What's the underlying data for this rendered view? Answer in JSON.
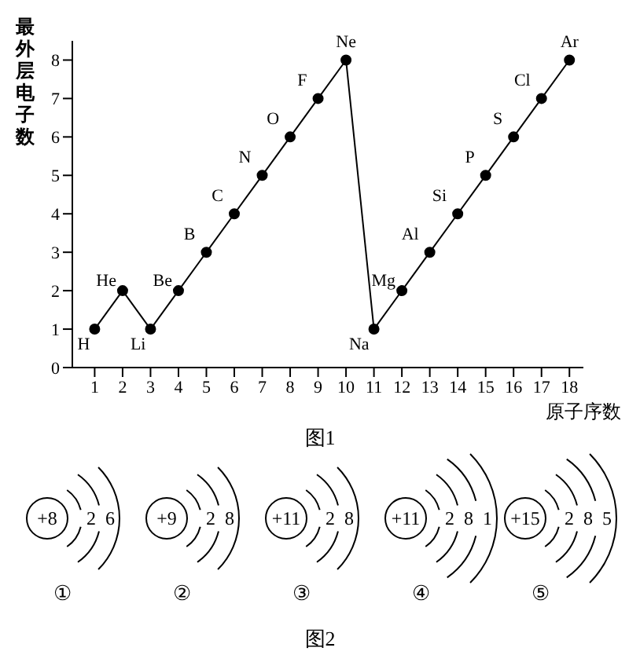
{
  "chart_data": {
    "type": "line",
    "xlabel": "原子序数",
    "ylabel": "最外层电子数",
    "x": [
      1,
      2,
      3,
      4,
      5,
      6,
      7,
      8,
      9,
      10,
      11,
      12,
      13,
      14,
      15,
      16,
      17,
      18
    ],
    "series": [
      {
        "color": "#000000",
        "values": [
          1,
          2,
          1,
          2,
          3,
          4,
          5,
          6,
          7,
          8,
          1,
          2,
          3,
          4,
          5,
          6,
          7,
          8
        ]
      }
    ],
    "xlim": [
      0.2,
      18.5
    ],
    "xticks": [
      1,
      2,
      3,
      4,
      5,
      6,
      7,
      8,
      9,
      10,
      11,
      12,
      13,
      14,
      15,
      16,
      17,
      18
    ],
    "ylim": [
      0,
      8.5
    ],
    "yticks": [
      0,
      1,
      2,
      3,
      4,
      5,
      6,
      7,
      8
    ],
    "grid": false,
    "legend": false,
    "marker": "circle",
    "line_style": "solid",
    "annotations": [
      {
        "text": "H",
        "x": 1,
        "y": 1
      },
      {
        "text": "He",
        "x": 2,
        "y": 2
      },
      {
        "text": "Li",
        "x": 3,
        "y": 1
      },
      {
        "text": "Be",
        "x": 4,
        "y": 2
      },
      {
        "text": "B",
        "x": 5,
        "y": 3
      },
      {
        "text": "C",
        "x": 6,
        "y": 4
      },
      {
        "text": "N",
        "x": 7,
        "y": 5
      },
      {
        "text": "O",
        "x": 8,
        "y": 6
      },
      {
        "text": "F",
        "x": 9,
        "y": 7
      },
      {
        "text": "Ne",
        "x": 10,
        "y": 8
      },
      {
        "text": "Na",
        "x": 11,
        "y": 1
      },
      {
        "text": "Mg",
        "x": 12,
        "y": 2
      },
      {
        "text": "Al",
        "x": 13,
        "y": 3
      },
      {
        "text": "Si",
        "x": 14,
        "y": 4
      },
      {
        "text": "P",
        "x": 15,
        "y": 5
      },
      {
        "text": "S",
        "x": 16,
        "y": 6
      },
      {
        "text": "Cl",
        "x": 17,
        "y": 7
      },
      {
        "text": "Ar",
        "x": 18,
        "y": 8
      },
      "图1",
      "+8",
      "2 6",
      "①",
      "+9",
      "2 8",
      "②",
      "+11",
      "2 8",
      "③",
      "+11",
      "2 8 1",
      "④",
      "+15",
      "2 8 5",
      "⑤",
      "图2"
    ]
  }
}
